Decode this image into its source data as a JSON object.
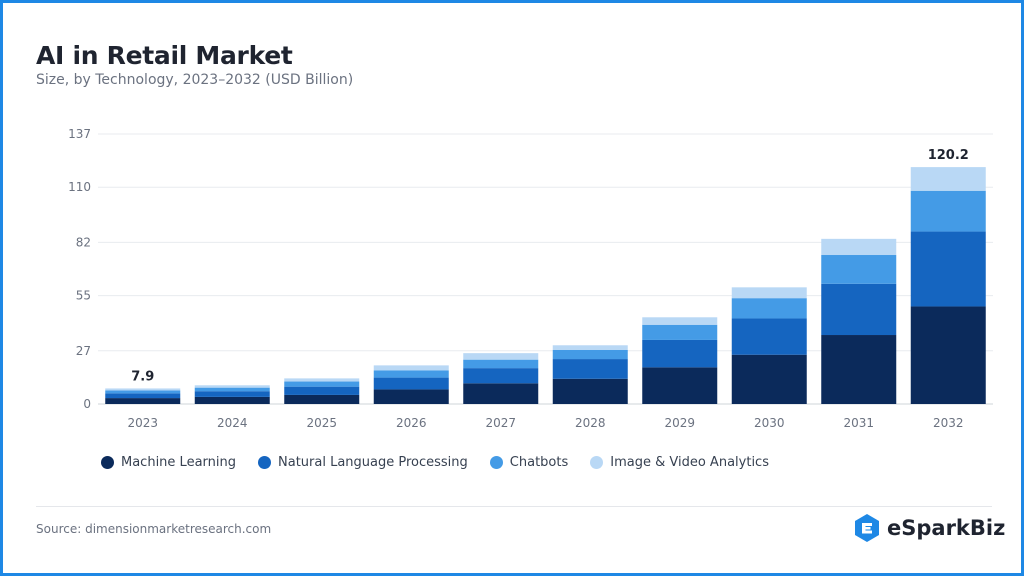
{
  "header": {
    "title": "AI in Retail Market",
    "subtitle": "Size, by Technology, 2023–2032 (USD Billion)"
  },
  "footer": {
    "source": "Source: dimensionmarketresearch.com",
    "brand": "eSparkBiz"
  },
  "colors": {
    "machine_learning": "#0b2a5b",
    "nlp": "#1565c0",
    "chatbots": "#449be6",
    "image_video": "#b9d8f5"
  },
  "chart_data": {
    "type": "bar",
    "stacked": true,
    "title": "AI in Retail Market",
    "subtitle": "Size, by Technology, 2023–2032 (USD Billion)",
    "xlabel": "",
    "ylabel": "",
    "categories": [
      "2023",
      "2024",
      "2025",
      "2026",
      "2027",
      "2028",
      "2029",
      "2030",
      "2031",
      "2032"
    ],
    "yticks": [
      "0",
      "27",
      "55",
      "82",
      "110",
      "137"
    ],
    "ylim": [
      0,
      137
    ],
    "grid": true,
    "legend_position": "bottom-left",
    "series": [
      {
        "name": "Machine Learning",
        "color": "#0b2a5b",
        "values": [
          3.0,
          3.6,
          4.6,
          7.4,
          10.5,
          12.8,
          18.6,
          25.0,
          35.0,
          49.5
        ]
      },
      {
        "name": "Natural Language Processing",
        "color": "#1565c0",
        "values": [
          2.4,
          2.9,
          4.2,
          6.0,
          7.7,
          10.0,
          13.9,
          18.4,
          26.0,
          38.0
        ]
      },
      {
        "name": "Chatbots",
        "color": "#449be6",
        "values": [
          1.5,
          1.8,
          2.6,
          3.6,
          4.3,
          4.6,
          7.7,
          10.3,
          14.6,
          20.7
        ]
      },
      {
        "name": "Image & Video Analytics",
        "color": "#b9d8f5",
        "values": [
          1.0,
          1.2,
          1.6,
          2.6,
          3.3,
          2.4,
          3.8,
          5.5,
          8.2,
          12.0
        ]
      }
    ],
    "annotations": [
      {
        "category": "2023",
        "label": "7.9"
      },
      {
        "category": "2032",
        "label": "120.2"
      }
    ]
  }
}
